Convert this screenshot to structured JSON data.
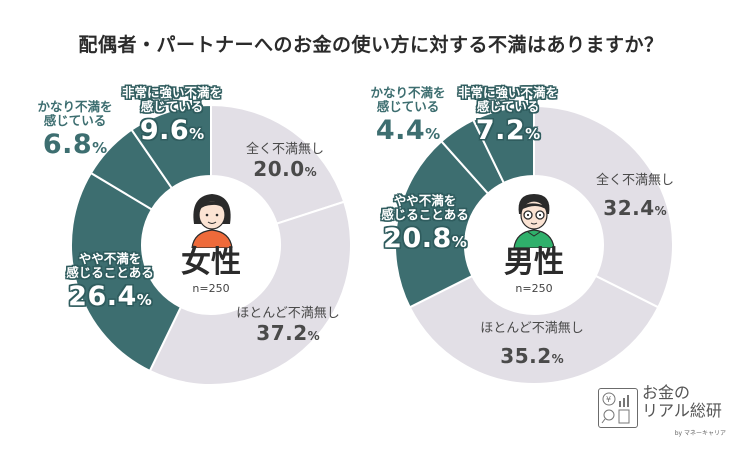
{
  "title": "配偶者・パートナーへのお金の使い方に対する不満はありますか？",
  "colors": {
    "dissatisfied": "#3d6e70",
    "satisfied": "#e2dfe6",
    "text_dark": "#2b2b2b"
  },
  "charts": [
    {
      "gender": "女性",
      "n": "n=250",
      "segments": [
        {
          "category": "全く不満無し",
          "value": 20.0,
          "display": "20.0",
          "pct": "%"
        },
        {
          "category": "ほとんど不満無し",
          "value": 37.2,
          "display": "37.2",
          "pct": "%"
        },
        {
          "category_line1": "やや不満を",
          "category_line2": "感じることある",
          "value": 26.4,
          "display": "26.4",
          "pct": "%"
        },
        {
          "category_line1": "かなり不満を",
          "category_line2": "感じている",
          "value": 6.8,
          "display": "6.8",
          "pct": "%"
        },
        {
          "category_line1": "非常に強い不満を",
          "category_line2": "感じている",
          "value": 9.6,
          "display": "9.6",
          "pct": "%"
        }
      ]
    },
    {
      "gender": "男性",
      "n": "n=250",
      "segments": [
        {
          "category": "全く不満無し",
          "value": 32.4,
          "display": "32.4",
          "pct": "%"
        },
        {
          "category": "ほとんど不満無し",
          "value": 35.2,
          "display": "35.2",
          "pct": "%"
        },
        {
          "category_line1": "やや不満を",
          "category_line2": "感じることある",
          "value": 20.8,
          "display": "20.8",
          "pct": "%"
        },
        {
          "category_line1": "かなり不満を",
          "category_line2": "感じている",
          "value": 4.4,
          "display": "4.4",
          "pct": "%"
        },
        {
          "category_line1": "非常に強い不満を",
          "category_line2": "感じている",
          "value": 7.2,
          "display": "7.2",
          "pct": "%"
        }
      ]
    }
  ],
  "logo": {
    "line1": "お金の",
    "line2": "リアル総研",
    "sub": "by マネーキャリア"
  },
  "chart_data": [
    {
      "type": "pie",
      "title": "配偶者・パートナーへのお金の使い方に対する不満はありますか？ — 女性 (n=250)",
      "categories": [
        "全く不満無し",
        "ほとんど不満無し",
        "やや不満を感じることある",
        "かなり不満を感じている",
        "非常に強い不満を感じている"
      ],
      "values": [
        20.0,
        37.2,
        26.4,
        6.8,
        9.6
      ],
      "unit": "%",
      "donut": true
    },
    {
      "type": "pie",
      "title": "配偶者・パートナーへのお金の使い方に対する不満はありますか？ — 男性 (n=250)",
      "categories": [
        "全く不満無し",
        "ほとんど不満無し",
        "やや不満を感じることある",
        "かなり不満を感じている",
        "非常に強い不満を感じている"
      ],
      "values": [
        32.4,
        35.2,
        20.8,
        4.4,
        7.2
      ],
      "unit": "%",
      "donut": true
    }
  ]
}
